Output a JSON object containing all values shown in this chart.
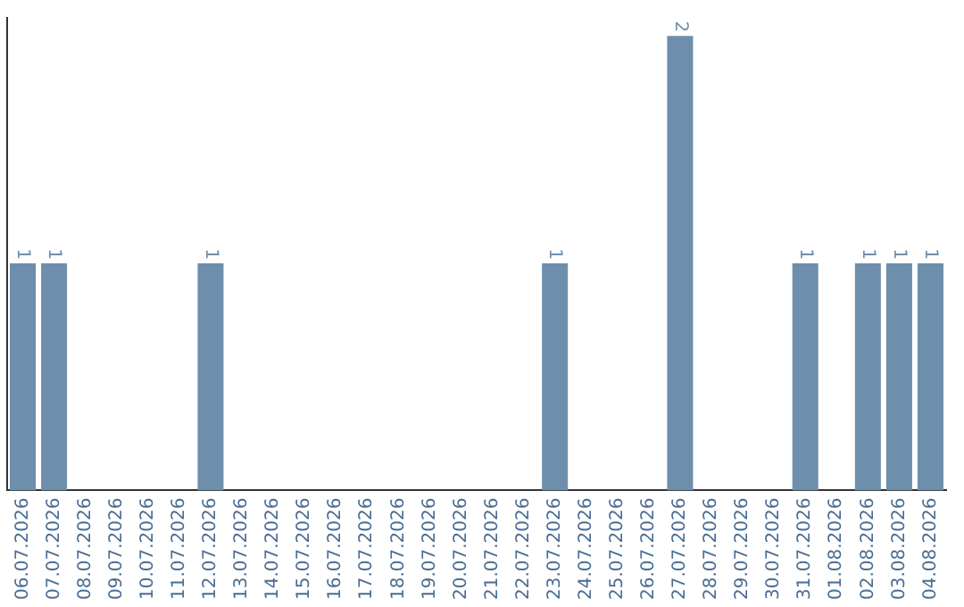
{
  "chart_data": {
    "type": "bar",
    "categories": [
      "06.07.2026",
      "07.07.2026",
      "08.07.2026",
      "09.07.2026",
      "10.07.2026",
      "11.07.2026",
      "12.07.2026",
      "13.07.2026",
      "14.07.2026",
      "15.07.2026",
      "16.07.2026",
      "17.07.2026",
      "18.07.2026",
      "19.07.2026",
      "20.07.2026",
      "21.07.2026",
      "22.07.2026",
      "23.07.2026",
      "24.07.2026",
      "25.07.2026",
      "26.07.2026",
      "27.07.2026",
      "28.07.2026",
      "29.07.2026",
      "30.07.2026",
      "31.07.2026",
      "01.08.2026",
      "02.08.2026",
      "03.08.2026",
      "04.08.2026"
    ],
    "values": [
      1,
      1,
      0,
      0,
      0,
      0,
      1,
      0,
      0,
      0,
      0,
      0,
      0,
      0,
      0,
      0,
      0,
      1,
      0,
      0,
      0,
      2,
      0,
      0,
      0,
      1,
      0,
      1,
      1,
      1
    ],
    "value_labels": [
      "1",
      "1",
      null,
      null,
      null,
      null,
      "1",
      null,
      null,
      null,
      null,
      null,
      null,
      null,
      null,
      null,
      null,
      "1",
      null,
      null,
      null,
      "2",
      null,
      null,
      null,
      "1",
      null,
      "1",
      "1",
      "1"
    ],
    "color": "#6e8fac",
    "ylim": [
      0,
      2.08
    ],
    "tick_labels": "x",
    "grid": false,
    "legend": false
  }
}
